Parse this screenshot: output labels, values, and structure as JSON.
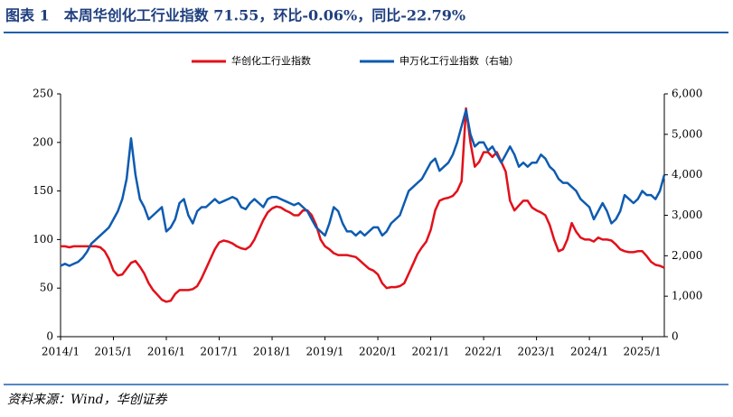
{
  "chart_data": {
    "type": "line",
    "title": "图表 1　本周华创化工行业指数 71.55，环比-0.06%，同比-22.79%",
    "source": "资料来源：Wind，华创证券",
    "x": [
      "2014/1",
      "2014/2",
      "2014/3",
      "2014/4",
      "2014/5",
      "2014/6",
      "2014/7",
      "2014/8",
      "2014/9",
      "2014/10",
      "2014/11",
      "2014/12",
      "2015/1",
      "2015/2",
      "2015/3",
      "2015/4",
      "2015/5",
      "2015/6",
      "2015/7",
      "2015/8",
      "2015/9",
      "2015/10",
      "2015/11",
      "2015/12",
      "2016/1",
      "2016/2",
      "2016/3",
      "2016/4",
      "2016/5",
      "2016/6",
      "2016/7",
      "2016/8",
      "2016/9",
      "2016/10",
      "2016/11",
      "2016/12",
      "2017/1",
      "2017/2",
      "2017/3",
      "2017/4",
      "2017/5",
      "2017/6",
      "2017/7",
      "2017/8",
      "2017/9",
      "2017/10",
      "2017/11",
      "2017/12",
      "2018/1",
      "2018/2",
      "2018/3",
      "2018/4",
      "2018/5",
      "2018/6",
      "2018/7",
      "2018/8",
      "2018/9",
      "2018/10",
      "2018/11",
      "2018/12",
      "2019/1",
      "2019/2",
      "2019/3",
      "2019/4",
      "2019/5",
      "2019/6",
      "2019/7",
      "2019/8",
      "2019/9",
      "2019/10",
      "2019/11",
      "2019/12",
      "2020/1",
      "2020/2",
      "2020/3",
      "2020/4",
      "2020/5",
      "2020/6",
      "2020/7",
      "2020/8",
      "2020/9",
      "2020/10",
      "2020/11",
      "2020/12",
      "2021/1",
      "2021/2",
      "2021/3",
      "2021/4",
      "2021/5",
      "2021/6",
      "2021/7",
      "2021/8",
      "2021/9",
      "2021/10",
      "2021/11",
      "2021/12",
      "2022/1",
      "2022/2",
      "2022/3",
      "2022/4",
      "2022/5",
      "2022/6",
      "2022/7",
      "2022/8",
      "2022/9",
      "2022/10",
      "2022/11",
      "2022/12",
      "2023/1",
      "2023/2",
      "2023/3",
      "2023/4",
      "2023/5",
      "2023/6",
      "2023/7",
      "2023/8",
      "2023/9",
      "2023/10",
      "2023/11",
      "2023/12",
      "2024/1",
      "2024/2",
      "2024/3",
      "2024/4",
      "2024/5",
      "2024/6",
      "2024/7",
      "2024/8",
      "2024/9",
      "2024/10",
      "2024/11",
      "2024/12",
      "2025/1",
      "2025/2",
      "2025/3",
      "2025/4",
      "2025/5",
      "2025/6"
    ],
    "xticks": [
      "2014/1",
      "2015/1",
      "2016/1",
      "2017/1",
      "2018/1",
      "2019/1",
      "2020/1",
      "2021/1",
      "2022/1",
      "2023/1",
      "2024/1",
      "2025/1"
    ],
    "series": [
      {
        "name": "华创化工行业指数",
        "color": "#e2101a",
        "values": [
          93,
          93,
          92,
          93,
          93,
          93,
          93,
          93,
          93,
          92,
          88,
          80,
          68,
          63,
          64,
          70,
          76,
          78,
          72,
          65,
          55,
          48,
          43,
          38,
          36,
          37,
          44,
          48,
          48,
          48,
          49,
          52,
          60,
          70,
          80,
          90,
          97,
          99,
          98,
          96,
          93,
          91,
          90,
          93,
          100,
          110,
          120,
          128,
          132,
          134,
          133,
          130,
          128,
          125,
          125,
          130,
          130,
          125,
          115,
          100,
          93,
          90,
          86,
          84,
          84,
          84,
          83,
          82,
          78,
          74,
          70,
          68,
          64,
          55,
          50,
          51,
          51,
          52,
          55,
          65,
          75,
          85,
          92,
          98,
          110,
          130,
          140,
          142,
          143,
          145,
          150,
          160,
          235,
          200,
          175,
          180,
          190,
          190,
          185,
          190,
          180,
          170,
          140,
          130,
          135,
          140,
          140,
          133,
          130,
          128,
          125,
          115,
          100,
          88,
          90,
          100,
          117,
          108,
          102,
          100,
          100,
          98,
          102,
          100,
          100,
          99,
          95,
          90,
          88,
          87,
          87,
          88,
          88,
          83,
          77,
          74,
          73,
          71
        ]
      },
      {
        "name": "申万化工行业指数（右轴）",
        "color": "#0e5bb0",
        "axis": "y2",
        "values": [
          1750,
          1800,
          1750,
          1800,
          1850,
          1950,
          2100,
          2300,
          2400,
          2500,
          2600,
          2700,
          2900,
          3100,
          3400,
          3900,
          4900,
          4000,
          3400,
          3200,
          2900,
          3000,
          3100,
          3200,
          2600,
          2700,
          2900,
          3300,
          3400,
          3000,
          2800,
          3100,
          3200,
          3200,
          3300,
          3400,
          3300,
          3350,
          3400,
          3450,
          3400,
          3200,
          3150,
          3300,
          3400,
          3300,
          3200,
          3400,
          3450,
          3450,
          3400,
          3350,
          3300,
          3250,
          3300,
          3200,
          3100,
          2900,
          2700,
          2600,
          2500,
          2800,
          3200,
          3100,
          2800,
          2600,
          2600,
          2500,
          2600,
          2500,
          2600,
          2700,
          2700,
          2500,
          2600,
          2800,
          2900,
          3000,
          3300,
          3600,
          3700,
          3800,
          3900,
          4100,
          4300,
          4400,
          4100,
          4200,
          4300,
          4500,
          4800,
          5200,
          5600,
          5000,
          4700,
          4800,
          4800,
          4600,
          4700,
          4500,
          4300,
          4500,
          4700,
          4500,
          4200,
          4300,
          4200,
          4300,
          4300,
          4500,
          4400,
          4200,
          4100,
          3900,
          3800,
          3800,
          3700,
          3600,
          3400,
          3300,
          3200,
          2900,
          3100,
          3300,
          3100,
          2800,
          2900,
          3100,
          3500,
          3400,
          3300,
          3400,
          3600,
          3500,
          3500,
          3400,
          3600,
          4000
        ]
      }
    ],
    "ylim": [
      0,
      250
    ],
    "yticks": [
      0,
      50,
      100,
      150,
      200,
      250
    ],
    "y2lim": [
      0,
      6000
    ],
    "y2ticks": [
      0,
      {
        "value": 1000,
        "label": "1,000"
      },
      {
        "value": 2000,
        "label": "2,000"
      },
      {
        "value": 3000,
        "label": "3,000"
      },
      {
        "value": 4000,
        "label": "4,000"
      },
      {
        "value": 5000,
        "label": "5,000"
      },
      {
        "value": 6000,
        "label": "6,000"
      }
    ],
    "legend": "top"
  }
}
